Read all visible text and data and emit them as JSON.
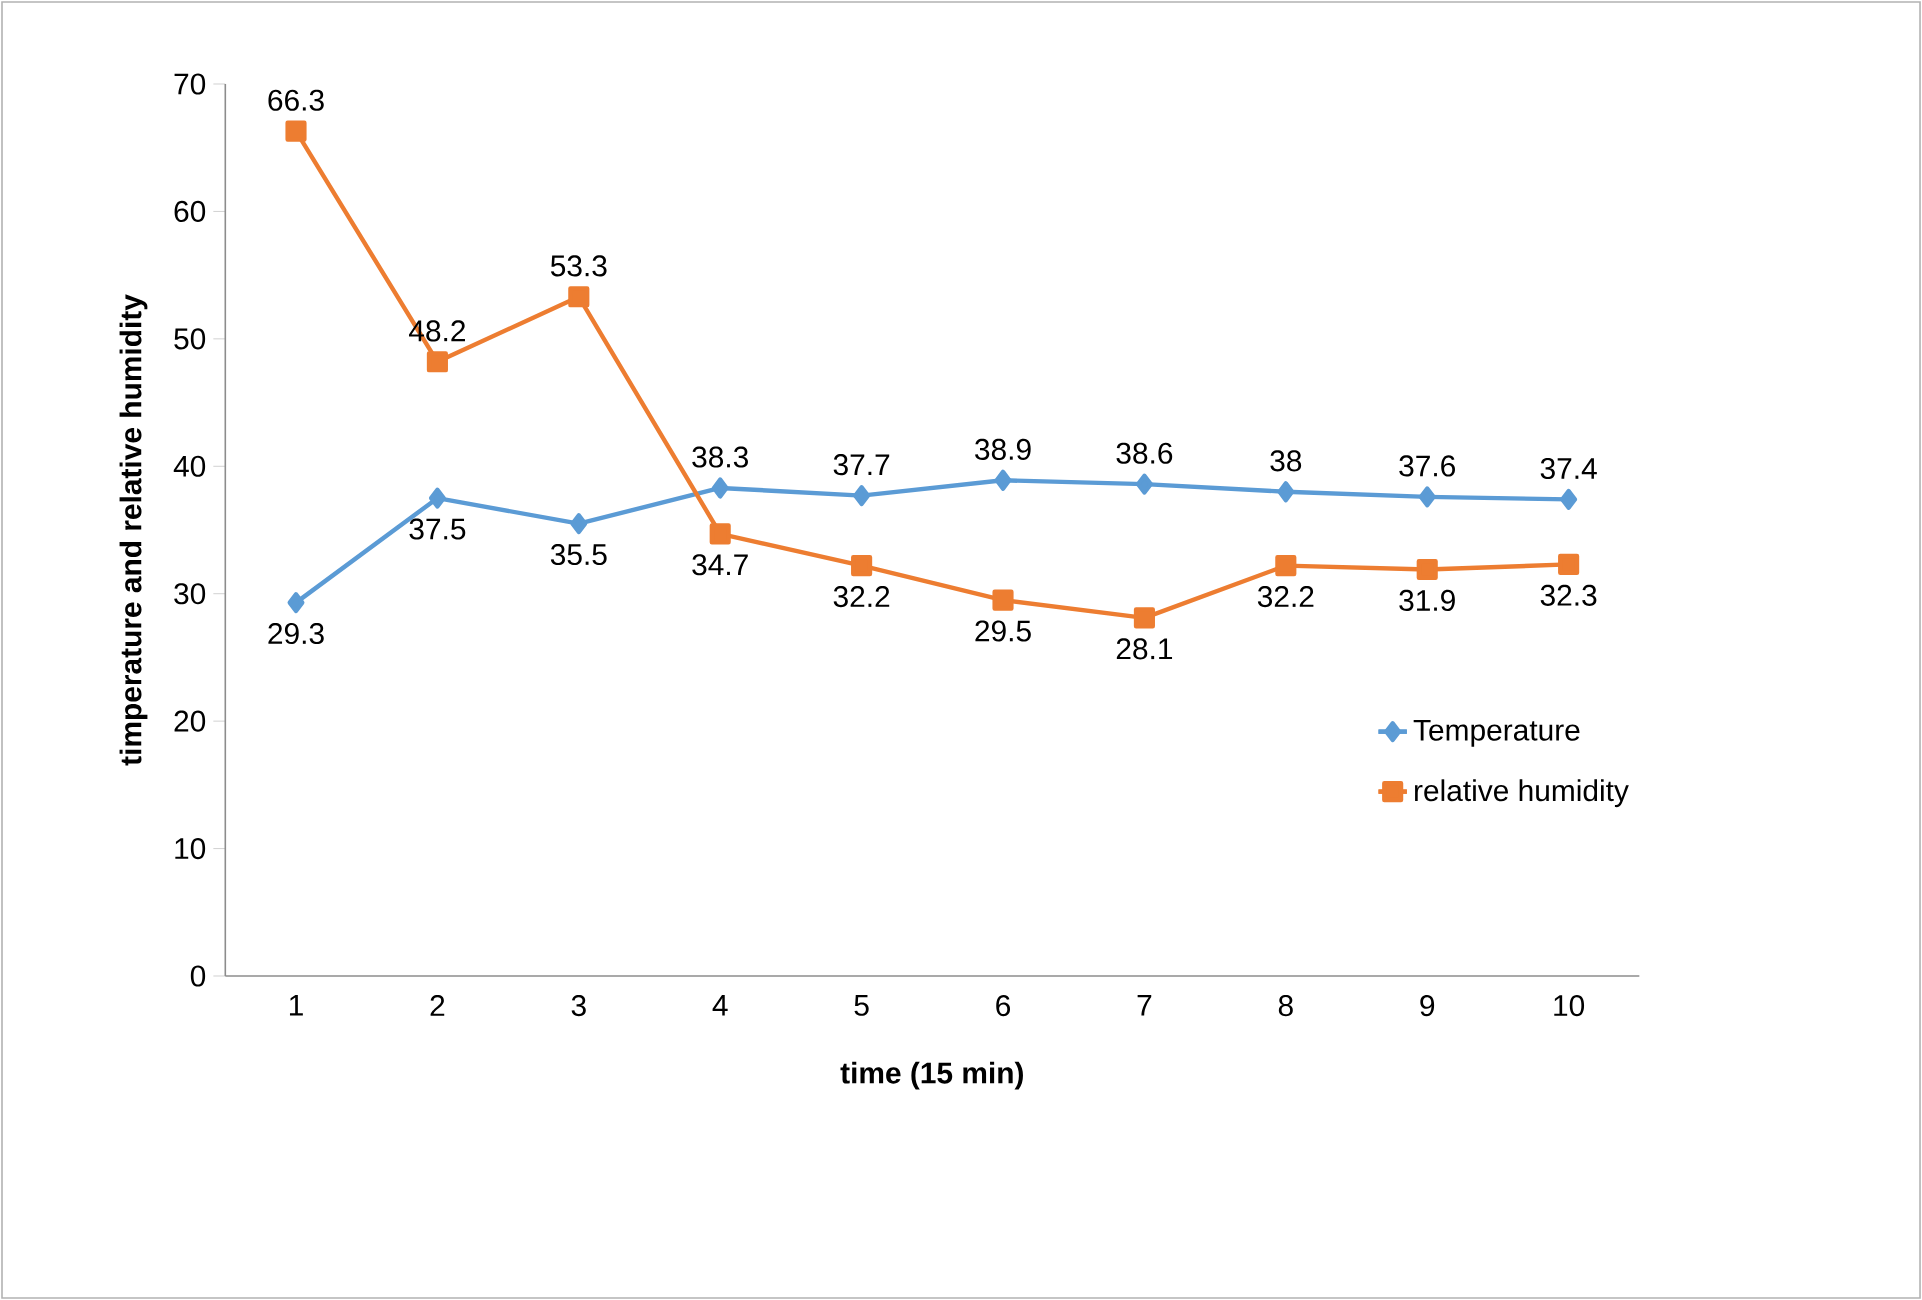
{
  "chart_data": {
    "type": "line",
    "xlabel": "time (15 min)",
    "ylabel": "timperature and relative humidity",
    "categories": [
      "1",
      "2",
      "3",
      "4",
      "5",
      "6",
      "7",
      "8",
      "9",
      "10"
    ],
    "series": [
      {
        "name": "Temperature",
        "color": "#5b9bd5",
        "marker": "diamond",
        "values": [
          29.3,
          37.5,
          35.5,
          38.3,
          37.7,
          38.9,
          38.6,
          38,
          37.6,
          37.4
        ]
      },
      {
        "name": "relative humidity",
        "color": "#ed7d31",
        "marker": "square",
        "values": [
          66.3,
          48.2,
          53.3,
          34.7,
          32.2,
          29.5,
          28.1,
          32.2,
          31.9,
          32.3
        ]
      }
    ],
    "ylim": [
      0,
      70
    ],
    "yticks": [
      0,
      10,
      20,
      30,
      40,
      50,
      60,
      70
    ],
    "data_labels": true,
    "grid": false,
    "legend": "right"
  }
}
